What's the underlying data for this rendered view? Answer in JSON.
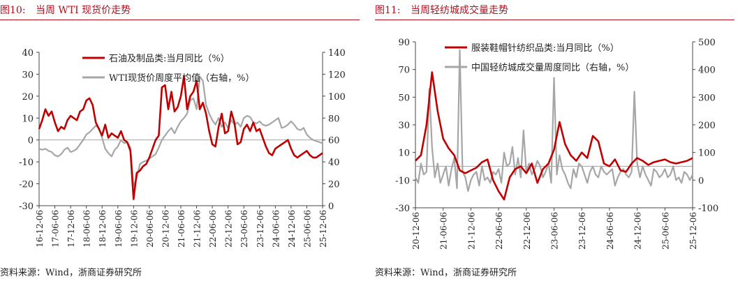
{
  "panels": [
    {
      "fig_no": "图10:",
      "title": "当周 WTI 现货价走势",
      "source": "资料来源：Wind，浙商证券研究所",
      "chart_data": {
        "type": "line",
        "x_ticks": [
          "16-12-06",
          "17-06-06",
          "17-12-06",
          "18-06-06",
          "18-12-06",
          "19-06-06",
          "19-12-06",
          "20-06-06",
          "20-12-06",
          "21-06-06",
          "21-12-06",
          "22-06-06",
          "22-12-06",
          "23-06-06",
          "23-12-06",
          "24-06-06",
          "24-12-06",
          "25-06-06",
          "25-12-06"
        ],
        "y_left": {
          "min": -30,
          "max": 40,
          "ticks": [
            -30,
            -20,
            -10,
            0,
            10,
            20,
            30,
            40
          ]
        },
        "y_right": {
          "min": 0,
          "max": 140,
          "ticks": [
            0,
            20,
            40,
            60,
            80,
            100,
            120,
            140
          ]
        },
        "series": [
          {
            "name": "石油及制品类:当月同比（%）",
            "axis": "left",
            "color": "#c00000",
            "x": [
              0,
              0.2,
              0.4,
              0.6,
              0.8,
              1.0,
              1.2,
              1.4,
              1.6,
              1.8,
              2.0,
              2.2,
              2.4,
              2.6,
              2.8,
              3.0,
              3.2,
              3.4,
              3.6,
              3.8,
              4.0,
              4.2,
              4.4,
              4.6,
              4.8,
              5.0,
              5.2,
              5.4,
              5.6,
              5.8,
              6.0,
              6.2,
              6.4,
              6.6,
              6.8,
              7.0,
              7.2,
              7.4,
              7.6,
              7.8,
              8.0,
              8.2,
              8.4,
              8.6,
              8.8,
              9.0,
              9.2,
              9.4,
              9.6,
              9.8,
              10.0,
              10.2,
              10.4,
              10.6,
              10.8,
              11.0,
              11.2,
              11.4,
              11.6,
              11.8,
              12.0,
              12.2,
              12.4,
              12.6,
              12.8,
              13.0,
              13.2,
              13.4,
              13.6,
              13.8,
              14.0,
              14.2,
              14.4,
              14.6,
              14.8,
              15.0,
              15.2,
              15.4,
              15.6,
              15.8,
              16.0,
              16.2,
              16.4,
              16.6,
              16.8,
              17.0,
              17.2,
              17.4,
              17.6,
              17.8,
              18.0
            ],
            "values": [
              5,
              9,
              14,
              11,
              13,
              8,
              4,
              6,
              5,
              9,
              11,
              10,
              9,
              13,
              14,
              18,
              19,
              16,
              8,
              5,
              2,
              7,
              1,
              3,
              2,
              1,
              4,
              0,
              -1,
              -5,
              -27,
              -15,
              -14,
              -12,
              -11,
              -8,
              -4,
              0,
              2,
              24,
              25,
              14,
              22,
              13,
              15,
              20,
              29,
              14,
              20,
              22,
              27,
              14,
              17,
              12,
              4,
              -2,
              -3,
              6,
              12,
              3,
              4,
              13,
              8,
              -2,
              -1,
              5,
              7,
              4,
              8,
              4,
              5,
              1,
              -3,
              -6,
              -7,
              -4,
              -3,
              -2,
              -1,
              0,
              -4,
              -7,
              -8,
              -7,
              -6,
              -5,
              -7,
              -8,
              -8,
              -7,
              -6
            ]
          },
          {
            "name": "WTI现货价周度平均值（右轴，%）",
            "axis": "right",
            "color": "#a6a6a6",
            "x": [
              0,
              0.2,
              0.4,
              0.6,
              0.8,
              1.0,
              1.2,
              1.4,
              1.6,
              1.8,
              2.0,
              2.2,
              2.4,
              2.6,
              2.8,
              3.0,
              3.2,
              3.4,
              3.6,
              3.8,
              4.0,
              4.2,
              4.4,
              4.6,
              4.8,
              5.0,
              5.2,
              5.4,
              5.6,
              5.8,
              6.0,
              6.2,
              6.4,
              6.6,
              6.8,
              7.0,
              7.2,
              7.4,
              7.6,
              7.8,
              8.0,
              8.2,
              8.4,
              8.6,
              8.8,
              9.0,
              9.2,
              9.4,
              9.6,
              9.8,
              10.0,
              10.2,
              10.4,
              10.6,
              10.8,
              11.0,
              11.2,
              11.4,
              11.6,
              11.8,
              12.0,
              12.2,
              12.4,
              12.6,
              12.8,
              13.0,
              13.2,
              13.4,
              13.6,
              13.8,
              14.0,
              14.2,
              14.4,
              14.6,
              14.8,
              15.0,
              15.2,
              15.4,
              15.6,
              15.8,
              16.0,
              16.2,
              16.4,
              16.6,
              16.8,
              17.0,
              17.2,
              17.4,
              17.6,
              17.8,
              18.0
            ],
            "values": [
              52,
              51,
              52,
              50,
              49,
              46,
              45,
              47,
              51,
              53,
              49,
              50,
              52,
              56,
              60,
              65,
              67,
              70,
              73,
              71,
              62,
              52,
              48,
              45,
              51,
              54,
              60,
              57,
              58,
              53,
              18,
              25,
              38,
              40,
              41,
              43,
              45,
              47,
              53,
              60,
              64,
              68,
              71,
              66,
              72,
              77,
              80,
              84,
              96,
              98,
              88,
              118,
              114,
              92,
              84,
              78,
              74,
              80,
              72,
              76,
              71,
              78,
              74,
              76,
              72,
              80,
              82,
              81,
              76,
              75,
              77,
              74,
              73,
              74,
              76,
              78,
              80,
              71,
              72,
              74,
              77,
              74,
              70,
              69,
              71,
              65,
              62,
              60,
              59,
              58,
              57
            ]
          }
        ],
        "legend_position": "top-center"
      }
    },
    {
      "fig_no": "图11:",
      "title": "当周轻纺城成交量走势",
      "source": "资料来源：Wind，浙商证券研究所",
      "chart_data": {
        "type": "line",
        "x_ticks": [
          "20-12-06",
          "21-06-06",
          "21-12-06",
          "22-06-06",
          "22-12-06",
          "23-06-06",
          "23-12-06",
          "24-06-06",
          "24-12-06",
          "25-06-06",
          "25-12-06"
        ],
        "y_left": {
          "min": -30,
          "max": 90,
          "ticks": [
            -30,
            -10,
            10,
            30,
            50,
            70,
            90
          ]
        },
        "y_right": {
          "min": -100,
          "max": 500,
          "ticks": [
            -100,
            0,
            100,
            200,
            300,
            400,
            500
          ]
        },
        "series": [
          {
            "name": "服装鞋帽针纺织品类:当月同比（%）",
            "axis": "left",
            "color": "#c00000",
            "x": [
              0,
              0.2,
              0.4,
              0.6,
              0.8,
              1.0,
              1.2,
              1.4,
              1.6,
              1.8,
              2.0,
              2.2,
              2.4,
              2.6,
              2.8,
              3.0,
              3.2,
              3.4,
              3.6,
              3.8,
              4.0,
              4.2,
              4.4,
              4.6,
              4.8,
              5.0,
              5.2,
              5.4,
              5.6,
              5.8,
              6.0,
              6.2,
              6.4,
              6.6,
              6.8,
              7.0,
              7.2,
              7.4,
              7.6,
              7.8,
              8.0,
              8.2,
              8.4,
              8.6,
              8.8,
              9.0,
              9.2,
              9.4,
              9.6,
              9.8,
              10.0
            ],
            "values": [
              4,
              8,
              30,
              68,
              40,
              20,
              13,
              8,
              -3,
              -5,
              -3,
              -1,
              3,
              5,
              -10,
              -18,
              -24,
              -8,
              -2,
              0,
              -5,
              2,
              -12,
              -2,
              2,
              12,
              32,
              16,
              8,
              4,
              10,
              6,
              22,
              18,
              2,
              0,
              5,
              -3,
              -4,
              2,
              6,
              4,
              1,
              3,
              4,
              5,
              3,
              2,
              3,
              4,
              6
            ]
          },
          {
            "name": "中国轻纺城成交量周度同比（右轴，%）",
            "axis": "right",
            "color": "#a6a6a6",
            "x": [
              0,
              0.1,
              0.2,
              0.3,
              0.4,
              0.5,
              0.6,
              0.7,
              0.8,
              0.9,
              1.0,
              1.1,
              1.2,
              1.3,
              1.4,
              1.5,
              1.6,
              1.7,
              1.8,
              1.9,
              2.0,
              2.1,
              2.2,
              2.3,
              2.4,
              2.5,
              2.6,
              2.7,
              2.8,
              2.9,
              3.0,
              3.1,
              3.2,
              3.3,
              3.4,
              3.5,
              3.6,
              3.7,
              3.8,
              3.9,
              4.0,
              4.1,
              4.2,
              4.3,
              4.4,
              4.5,
              4.6,
              4.7,
              4.8,
              4.9,
              5.0,
              5.1,
              5.2,
              5.3,
              5.4,
              5.5,
              5.6,
              5.7,
              5.8,
              5.9,
              6.0,
              6.1,
              6.2,
              6.3,
              6.4,
              6.5,
              6.6,
              6.7,
              6.8,
              6.9,
              7.0,
              7.1,
              7.2,
              7.3,
              7.4,
              7.5,
              7.6,
              7.7,
              7.8,
              7.9,
              8.0,
              8.1,
              8.2,
              8.3,
              8.4,
              8.5,
              8.6,
              8.7,
              8.8,
              8.9,
              9.0,
              9.1,
              9.2,
              9.3,
              9.4,
              9.5,
              9.6,
              9.7,
              9.8,
              9.9,
              10.0
            ],
            "values": [
              10,
              -10,
              60,
              20,
              30,
              330,
              120,
              10,
              60,
              -10,
              20,
              50,
              -20,
              40,
              80,
              -30,
              470,
              30,
              10,
              -40,
              0,
              20,
              30,
              -20,
              50,
              0,
              10,
              -10,
              30,
              20,
              40,
              -10,
              100,
              50,
              60,
              120,
              20,
              80,
              10,
              180,
              30,
              60,
              20,
              40,
              70,
              50,
              10,
              30,
              60,
              -10,
              370,
              20,
              90,
              40,
              20,
              -10,
              -30,
              40,
              10,
              60,
              50,
              20,
              -10,
              30,
              50,
              20,
              10,
              50,
              30,
              20,
              30,
              40,
              -20,
              10,
              30,
              40,
              20,
              10,
              30,
              320,
              60,
              10,
              50,
              20,
              0,
              -20,
              40,
              30,
              10,
              20,
              40,
              10,
              20,
              50,
              0,
              10,
              -10,
              30,
              20,
              0,
              20
            ]
          }
        ],
        "legend_position": "top-center"
      }
    }
  ]
}
